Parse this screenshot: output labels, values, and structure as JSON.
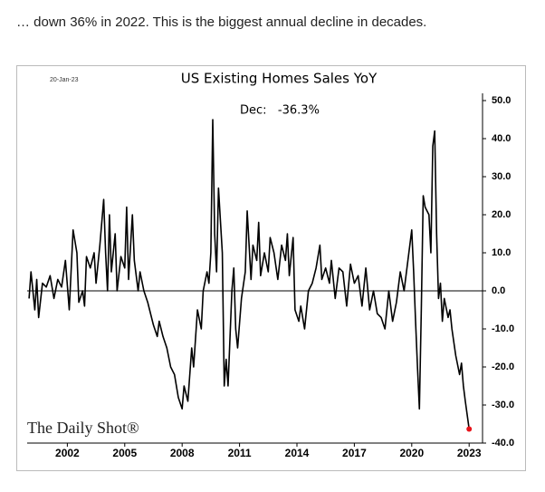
{
  "caption": "… down 36% in 2022. This is the biggest annual decline in decades.",
  "chart_data": {
    "type": "line",
    "title": "US Existing Homes Sales YoY",
    "date": "20-Jan-23",
    "annotation": "Dec:   -36.3%",
    "source": "The Daily Shot®",
    "color": "#000000",
    "last_point_color": "#e8141b",
    "x": [
      2000.0,
      2000.1,
      2000.2,
      2000.3,
      2000.4,
      2000.5,
      2000.7,
      2000.9,
      2001.1,
      2001.3,
      2001.5,
      2001.7,
      2001.9,
      2002.1,
      2002.3,
      2002.5,
      2002.6,
      2002.8,
      2002.9,
      2003.0,
      2003.2,
      2003.4,
      2003.5,
      2003.7,
      2003.9,
      2004.0,
      2004.1,
      2004.2,
      2004.3,
      2004.5,
      2004.6,
      2004.8,
      2005.0,
      2005.1,
      2005.2,
      2005.4,
      2005.5,
      2005.7,
      2005.8,
      2006.0,
      2006.2,
      2006.3,
      2006.5,
      2006.7,
      2006.8,
      2007.0,
      2007.2,
      2007.4,
      2007.6,
      2007.8,
      2008.0,
      2008.1,
      2008.3,
      2008.5,
      2008.6,
      2008.8,
      2009.0,
      2009.1,
      2009.3,
      2009.4,
      2009.5,
      2009.6,
      2009.7,
      2009.8,
      2009.9,
      2010.1,
      2010.2,
      2010.3,
      2010.4,
      2010.6,
      2010.7,
      2010.8,
      2010.9,
      2011.1,
      2011.3,
      2011.4,
      2011.6,
      2011.7,
      2011.9,
      2012.0,
      2012.1,
      2012.3,
      2012.5,
      2012.6,
      2012.8,
      2013.0,
      2013.2,
      2013.4,
      2013.5,
      2013.6,
      2013.8,
      2013.9,
      2014.1,
      2014.2,
      2014.4,
      2014.6,
      2014.8,
      2015.0,
      2015.2,
      2015.3,
      2015.5,
      2015.7,
      2015.8,
      2016.0,
      2016.2,
      2016.4,
      2016.6,
      2016.8,
      2017.0,
      2017.2,
      2017.4,
      2017.6,
      2017.8,
      2018.0,
      2018.2,
      2018.4,
      2018.6,
      2018.8,
      2019.0,
      2019.2,
      2019.4,
      2019.6,
      2019.8,
      2020.0,
      2020.1,
      2020.2,
      2020.3,
      2020.4,
      2020.5,
      2020.6,
      2020.7,
      2020.9,
      2021.0,
      2021.1,
      2021.2,
      2021.3,
      2021.4,
      2021.5,
      2021.6,
      2021.7,
      2021.9,
      2022.0,
      2022.1,
      2022.3,
      2022.5,
      2022.6,
      2022.7,
      2022.8,
      2023.0
    ],
    "values": [
      -2,
      5,
      0,
      -5,
      3,
      -7,
      2,
      1,
      4,
      -2,
      3,
      1,
      8,
      -5,
      16,
      10,
      -3,
      0,
      -4,
      9,
      6,
      10,
      2,
      12,
      24,
      10,
      0,
      20,
      5,
      15,
      0,
      9,
      6,
      22,
      3,
      20,
      8,
      0,
      5,
      0,
      -3,
      -5,
      -9,
      -12,
      -8,
      -12,
      -15,
      -20,
      -22,
      -28,
      -31,
      -25,
      -29,
      -15,
      -20,
      -5,
      -10,
      0,
      5,
      2,
      10,
      45,
      15,
      5,
      27,
      10,
      -25,
      -18,
      -25,
      0,
      6,
      -10,
      -15,
      -2,
      5,
      21,
      3,
      12,
      8,
      18,
      4,
      10,
      5,
      14,
      10,
      3,
      12,
      8,
      15,
      4,
      14,
      -5,
      -8,
      -4,
      -10,
      0,
      2,
      6,
      12,
      3,
      6,
      2,
      8,
      -2,
      6,
      5,
      -4,
      7,
      2,
      4,
      -4,
      6,
      -5,
      0,
      -6,
      -7,
      -10,
      0,
      -8,
      -3,
      5,
      0,
      8,
      16,
      5,
      -8,
      -20,
      -31,
      -5,
      25,
      22,
      20,
      10,
      38,
      42,
      15,
      -2,
      2,
      -8,
      -2,
      -7,
      -5,
      -10,
      -17,
      -22,
      -19,
      -25,
      -29,
      -36.3
    ],
    "xlim": [
      1999.9,
      2023.7
    ],
    "ylim": [
      -40,
      50
    ],
    "xticks": [
      2002,
      2005,
      2008,
      2011,
      2014,
      2017,
      2020,
      2023
    ],
    "yticks": [
      {
        "value": 50,
        "label": "50.0"
      },
      {
        "value": 40,
        "label": "40.0"
      },
      {
        "value": 30,
        "label": "30.0"
      },
      {
        "value": 20,
        "label": "20.0"
      },
      {
        "value": 10,
        "label": "10.0"
      },
      {
        "value": 0,
        "label": "0.0"
      },
      {
        "value": -10,
        "label": "-10.0"
      },
      {
        "value": -20,
        "label": "-20.0"
      },
      {
        "value": -30,
        "label": "-30.0"
      },
      {
        "value": -40,
        "label": "-40.0"
      }
    ]
  }
}
